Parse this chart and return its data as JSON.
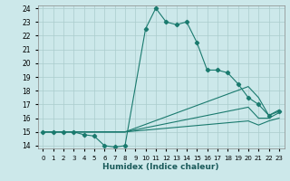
{
  "xlabel": "Humidex (Indice chaleur)",
  "bg_color": "#cce8ea",
  "grid_color": "#aacccc",
  "line_color": "#1a7a6e",
  "xlim": [
    -0.5,
    23.5
  ],
  "ylim": [
    13.8,
    24.2
  ],
  "xticks": [
    0,
    1,
    2,
    3,
    4,
    5,
    6,
    7,
    8,
    9,
    10,
    11,
    12,
    13,
    14,
    15,
    16,
    17,
    18,
    19,
    20,
    21,
    22,
    23
  ],
  "yticks": [
    14,
    15,
    16,
    17,
    18,
    19,
    20,
    21,
    22,
    23,
    24
  ],
  "series": [
    {
      "x": [
        0,
        1,
        2,
        3,
        4,
        5,
        6,
        7,
        8,
        10,
        11,
        12,
        13,
        14,
        15,
        16,
        17,
        18,
        19,
        20,
        21,
        22,
        23
      ],
      "y": [
        15,
        15,
        15,
        15,
        14.8,
        14.7,
        14.0,
        13.9,
        14.0,
        22.5,
        24.0,
        23.0,
        22.8,
        23.0,
        21.5,
        19.5,
        19.5,
        19.3,
        18.5,
        17.5,
        17.0,
        16.2,
        16.5
      ],
      "marker": true
    },
    {
      "x": [
        0,
        8,
        20,
        21,
        22,
        23
      ],
      "y": [
        15,
        15.0,
        18.3,
        17.5,
        16.2,
        16.6
      ],
      "marker": false
    },
    {
      "x": [
        0,
        8,
        20,
        21,
        22,
        23
      ],
      "y": [
        15,
        15.0,
        16.8,
        16.0,
        16.0,
        16.4
      ],
      "marker": false
    },
    {
      "x": [
        0,
        8,
        20,
        21,
        22,
        23
      ],
      "y": [
        15,
        15.0,
        15.8,
        15.5,
        15.8,
        16.0
      ],
      "marker": false
    }
  ]
}
